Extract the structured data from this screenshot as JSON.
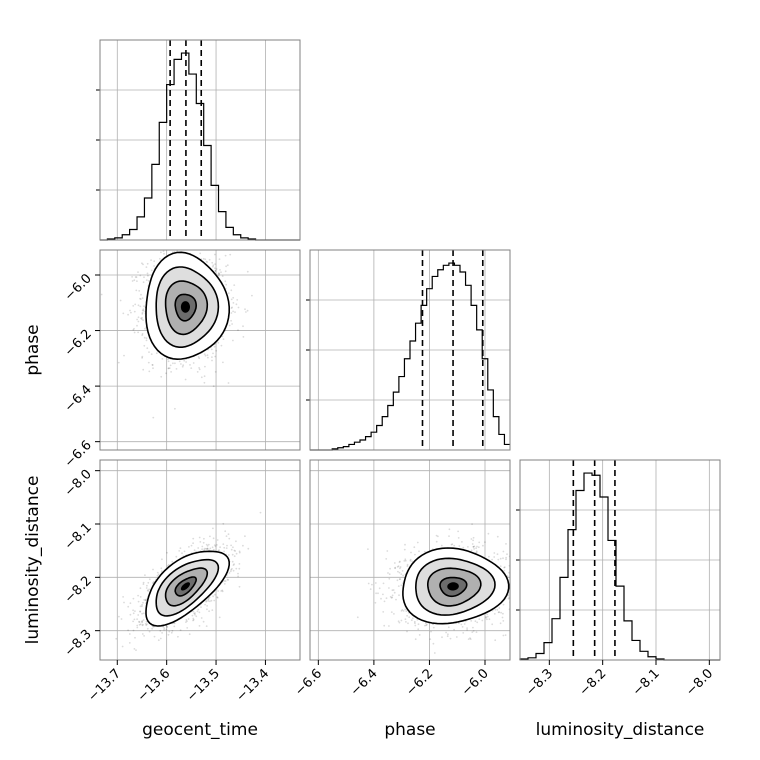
{
  "chart_data": {
    "type": "corner",
    "parameters": [
      "geocent_time",
      "phase",
      "luminosity_distance"
    ],
    "axis_labels": {
      "x": [
        "geocent_time",
        "phase",
        "luminosity_distance"
      ],
      "y": [
        "phase",
        "luminosity_distance"
      ]
    },
    "ranges": {
      "geocent_time": [
        -13.735,
        -13.33
      ],
      "phase": [
        -6.63,
        -5.91
      ],
      "luminosity_distance": [
        -8.355,
        -7.98
      ]
    },
    "ticks": {
      "geocent_time": [
        -13.7,
        -13.6,
        -13.5,
        -13.4
      ],
      "phase": [
        -6.6,
        -6.4,
        -6.2,
        -6.0
      ],
      "luminosity_distance": [
        -8.3,
        -8.2,
        -8.1,
        -8.0
      ]
    },
    "tick_labels": {
      "geocent_time": [
        "−13.7",
        "−13.6",
        "−13.5",
        "−13.4"
      ],
      "phase": [
        "−6.6",
        "−6.4",
        "−6.2",
        "−6.0"
      ],
      "luminosity_distance": [
        "−8.3",
        "−8.2",
        "−8.1",
        "−8.0"
      ]
    },
    "ytick_labels": {
      "phase": [
        "−6.0",
        "−6.2",
        "−6.4",
        "−6.6"
      ],
      "luminosity_distance": [
        "−8.0",
        "−8.1",
        "−8.2",
        "−8.3"
      ]
    },
    "quantiles": {
      "geocent_time": [
        -13.593,
        -13.561,
        -13.53
      ],
      "phase": [
        -6.225,
        -6.115,
        -6.008
      ],
      "luminosity_distance": [
        -8.255,
        -8.215,
        -8.177
      ]
    },
    "histograms": {
      "geocent_time": {
        "edges": [
          -13.735,
          -13.72,
          -13.705,
          -13.69,
          -13.675,
          -13.66,
          -13.645,
          -13.63,
          -13.615,
          -13.6,
          -13.585,
          -13.57,
          -13.555,
          -13.54,
          -13.525,
          -13.51,
          -13.495,
          -13.48,
          -13.465,
          -13.45,
          -13.435,
          -13.42,
          -13.405,
          -13.39,
          -13.375,
          -13.36,
          -13.345,
          -13.33
        ],
        "counts": [
          0,
          1,
          2,
          5,
          10,
          22,
          40,
          72,
          112,
          148,
          172,
          178,
          158,
          130,
          90,
          52,
          27,
          12,
          5,
          2,
          1,
          0,
          0,
          0,
          0,
          0,
          0
        ]
      },
      "phase": {
        "edges": [
          -6.63,
          -6.61,
          -6.59,
          -6.57,
          -6.55,
          -6.53,
          -6.51,
          -6.49,
          -6.47,
          -6.45,
          -6.43,
          -6.41,
          -6.39,
          -6.37,
          -6.35,
          -6.33,
          -6.31,
          -6.29,
          -6.27,
          -6.25,
          -6.23,
          -6.21,
          -6.19,
          -6.17,
          -6.15,
          -6.13,
          -6.11,
          -6.09,
          -6.07,
          -6.05,
          -6.03,
          -6.01,
          -5.99,
          -5.97,
          -5.95,
          -5.93,
          -5.91
        ],
        "counts": [
          0,
          0,
          0,
          0,
          1,
          2,
          3,
          5,
          7,
          9,
          12,
          16,
          22,
          30,
          40,
          52,
          66,
          82,
          98,
          114,
          130,
          145,
          156,
          162,
          166,
          168,
          166,
          160,
          148,
          130,
          108,
          82,
          54,
          30,
          14,
          5
        ]
      },
      "luminosity_distance": {
        "edges": [
          -8.355,
          -8.34,
          -8.325,
          -8.31,
          -8.295,
          -8.28,
          -8.265,
          -8.25,
          -8.235,
          -8.22,
          -8.205,
          -8.19,
          -8.175,
          -8.16,
          -8.145,
          -8.13,
          -8.115,
          -8.1,
          -8.085,
          -8.07,
          -8.055,
          -8.04,
          -8.025,
          -8.01,
          -7.995,
          -7.98
        ],
        "counts": [
          1,
          2,
          6,
          16,
          38,
          76,
          120,
          156,
          172,
          170,
          150,
          110,
          68,
          36,
          18,
          8,
          3,
          1,
          0,
          0,
          0,
          0,
          0,
          0,
          0
        ]
      }
    },
    "pairs": [
      {
        "x": "geocent_time",
        "y": "phase",
        "mean": [
          -13.562,
          -6.115
        ],
        "std": [
          0.042,
          0.095
        ],
        "rho": 0.0
      },
      {
        "x": "geocent_time",
        "y": "luminosity_distance",
        "mean": [
          -13.562,
          -8.217
        ],
        "std": [
          0.042,
          0.035
        ],
        "rho": 0.62
      },
      {
        "x": "phase",
        "y": "luminosity_distance",
        "mean": [
          -6.115,
          -8.217
        ],
        "std": [
          0.095,
          0.035
        ],
        "rho": 0.05
      }
    ],
    "contour_levels_sigma": [
      0.5,
      1.0,
      1.5,
      2.0
    ],
    "grid": true
  }
}
